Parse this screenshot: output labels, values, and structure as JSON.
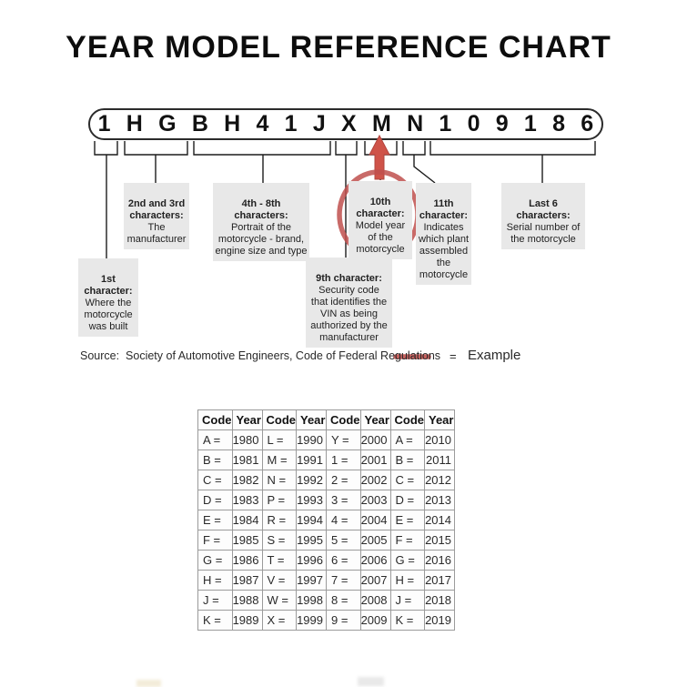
{
  "title": "YEAR MODEL REFERENCE CHART",
  "vin": {
    "characters": [
      "1",
      "H",
      "G",
      "B",
      "H",
      "4",
      "1",
      "J",
      "X",
      "M",
      "N",
      "1",
      "0",
      "9",
      "1",
      "8",
      "6"
    ]
  },
  "callouts": [
    {
      "title": "1st\ncharacter:",
      "body": "Where the\nmotorcycle\nwas built"
    },
    {
      "title": "2nd and 3rd\ncharacters:",
      "body": "The\nmanufacturer"
    },
    {
      "title": "4th - 8th\ncharacters:",
      "body": "Portrait of the\nmotorcycle - brand,\nengine size and type"
    },
    {
      "title": "9th character:",
      "body": "Security code\nthat identifies the\nVIN as being\nauthorized by the\nmanufacturer"
    },
    {
      "title": "10th\ncharacter:",
      "body": "Model year\nof the\nmotorcycle"
    },
    {
      "title": "11th\ncharacter:",
      "body": "Indicates\nwhich plant\nassembled\nthe\nmotorcycle"
    },
    {
      "title": "Last 6\ncharacters:",
      "body": "Serial number of\nthe motorcycle"
    }
  ],
  "source_line": "Source:  Society of Automotive Engineers, Code of Federal Regulations",
  "legend": {
    "equals": "=",
    "label": "Example"
  },
  "colors": {
    "accent_red": "#c0504d",
    "arrow_red": "#cf5349",
    "callout_bg": "#e8e8e8",
    "table_border": "#9b9b9b"
  },
  "table": {
    "headers": [
      "Code",
      "Year",
      "Code",
      "Year",
      "Code",
      "Year",
      "Code",
      "Year"
    ],
    "rows": [
      [
        "A =",
        "1980",
        "L =",
        "1990",
        "Y =",
        "2000",
        "A =",
        "2010"
      ],
      [
        "B =",
        "1981",
        "M =",
        "1991",
        "1 =",
        "2001",
        "B =",
        "2011"
      ],
      [
        "C =",
        "1982",
        "N =",
        "1992",
        "2 =",
        "2002",
        "C =",
        "2012"
      ],
      [
        "D =",
        "1983",
        "P =",
        "1993",
        "3 =",
        "2003",
        "D =",
        "2013"
      ],
      [
        "E =",
        "1984",
        "R =",
        "1994",
        "4 =",
        "2004",
        "E =",
        "2014"
      ],
      [
        "F =",
        "1985",
        "S =",
        "1995",
        "5 =",
        "2005",
        "F =",
        "2015"
      ],
      [
        "G =",
        "1986",
        "T =",
        "1996",
        "6 =",
        "2006",
        "G =",
        "2016"
      ],
      [
        "H =",
        "1987",
        "V =",
        "1997",
        "7 =",
        "2007",
        "H =",
        "2017"
      ],
      [
        "J =",
        "1988",
        "W =",
        "1998",
        "8 =",
        "2008",
        "J =",
        "2018"
      ],
      [
        "K =",
        "1989",
        "X =",
        "1999",
        "9 =",
        "2009",
        "K =",
        "2019"
      ]
    ]
  }
}
